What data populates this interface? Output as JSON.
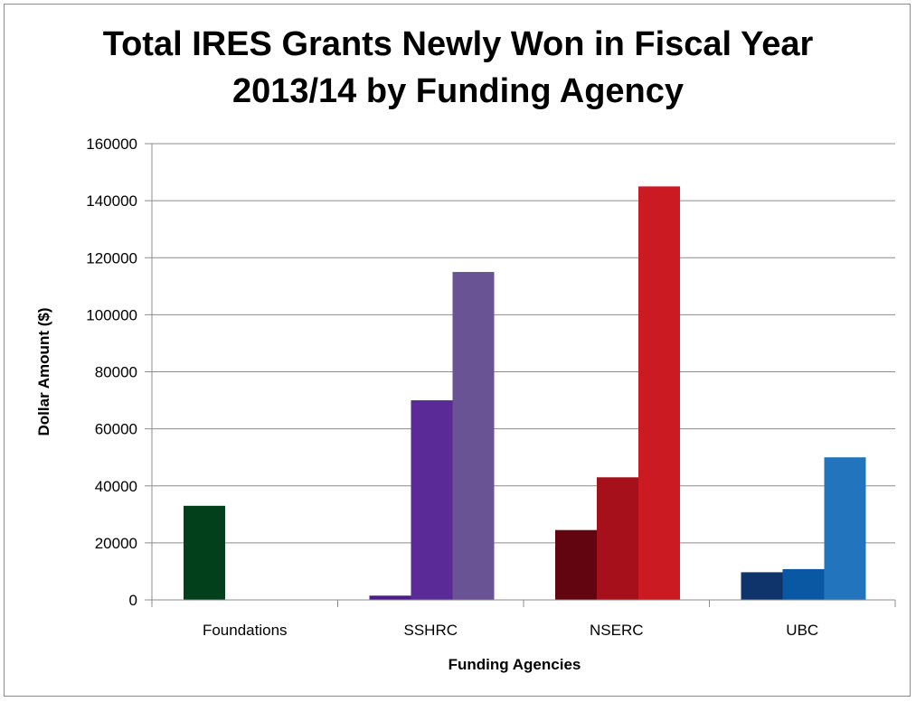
{
  "chart_data": {
    "type": "bar",
    "title": "Total IRES Grants Newly Won in Fiscal Year 2013/14 by Funding Agency",
    "xlabel": "Funding Agencies",
    "ylabel": "Dollar Amount ($)",
    "ylim": [
      0,
      160000
    ],
    "yticks": [
      0,
      20000,
      40000,
      60000,
      80000,
      100000,
      120000,
      140000,
      160000
    ],
    "ytick_labels": [
      "0",
      "20000",
      "40000",
      "60000",
      "80000",
      "100000",
      "120000",
      "140000",
      "160000"
    ],
    "grid": true,
    "legend": "none",
    "categories": [
      "Foundations",
      "SSHRC",
      "NSERC",
      "UBC"
    ],
    "groups": [
      {
        "category": "Foundations",
        "bars": [
          {
            "value": 33000,
            "color": "#02401b"
          }
        ]
      },
      {
        "category": "SSHRC",
        "bars": [
          {
            "value": 1500,
            "color": "#4b1f87"
          },
          {
            "value": 70000,
            "color": "#5a2a96"
          },
          {
            "value": 115000,
            "color": "#6a5394"
          }
        ]
      },
      {
        "category": "NSERC",
        "bars": [
          {
            "value": 24500,
            "color": "#620510"
          },
          {
            "value": 43000,
            "color": "#a6101a"
          },
          {
            "value": 145000,
            "color": "#cc1a22"
          }
        ]
      },
      {
        "category": "UBC",
        "bars": [
          {
            "value": 9700,
            "color": "#0f346c"
          },
          {
            "value": 10800,
            "color": "#0a57a3"
          },
          {
            "value": 50000,
            "color": "#2275bd"
          }
        ]
      }
    ]
  },
  "title_lines": [
    "Total IRES Grants Newly Won in Fiscal Year",
    "2013/14 by Funding Agency"
  ]
}
